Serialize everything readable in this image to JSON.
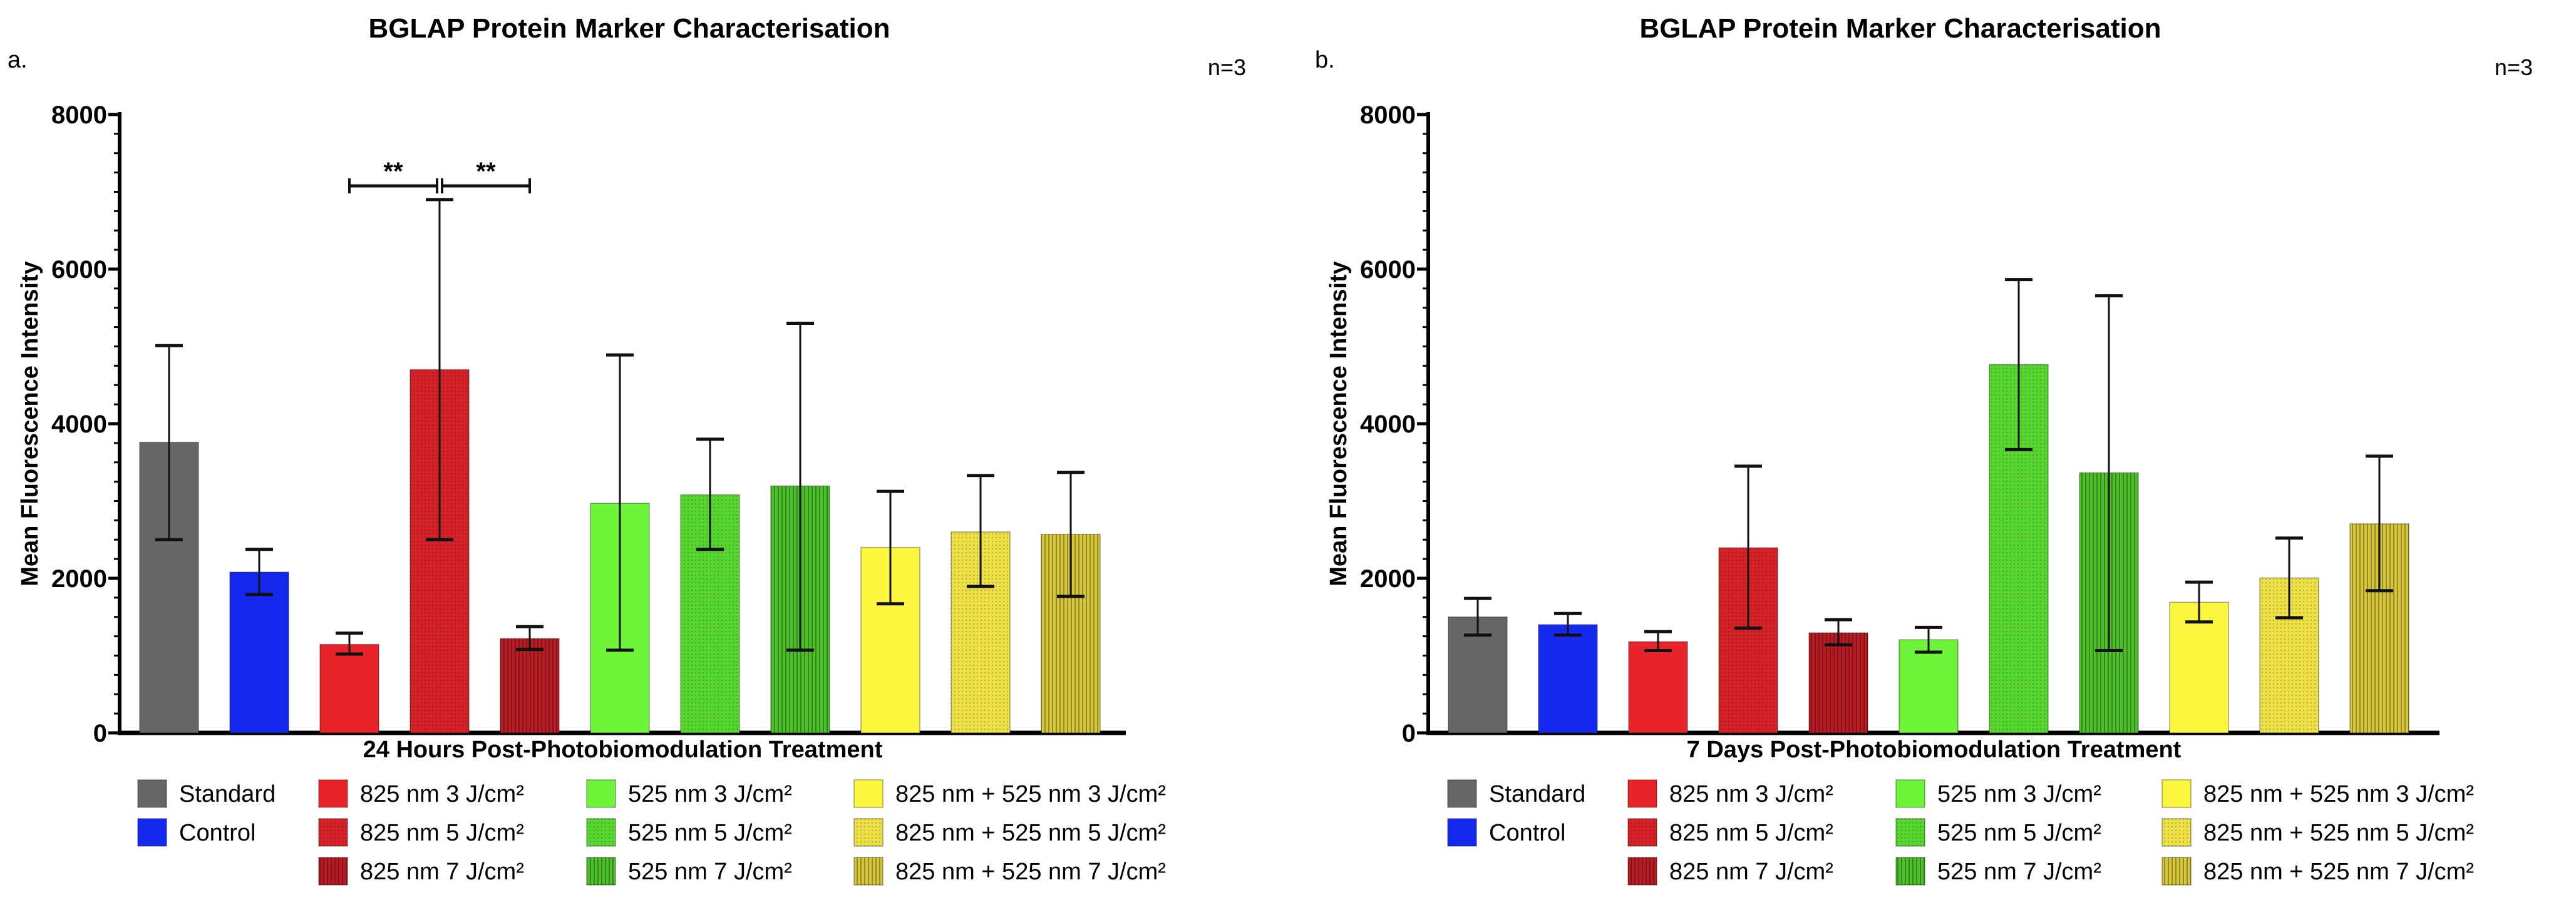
{
  "chart_data": [
    {
      "type": "bar",
      "panel_label": "a.",
      "title": "BGLAP Protein Marker Characterisation",
      "annotation": "n=3",
      "xlabel": "24 Hours Post-Photobiomodulation Treatment",
      "ylabel": "Mean Fluorescence Intensity",
      "ylim": [
        0,
        8000
      ],
      "yticks": [
        "0",
        "2000",
        "4000",
        "6000",
        "8000"
      ],
      "categories": [
        "Standard",
        "Control",
        "825 nm 3 J/cm²",
        "825 nm 5 J/cm²",
        "825 nm 7 J/cm²",
        "525 nm 3 J/cm²",
        "525 nm 5 J/cm²",
        "525 nm 7 J/cm²",
        "825 nm + 525 nm 3 J/cm²",
        "825 nm + 525 nm 5 J/cm²",
        "825 nm + 525 nm 7 J/cm²"
      ],
      "values": [
        3760,
        2080,
        1145,
        4700,
        1220,
        2970,
        3080,
        3195,
        2400,
        2600,
        2570
      ],
      "error_upper": [
        5010,
        2375,
        1290,
        6900,
        1375,
        4890,
        3800,
        5300,
        3125,
        3330,
        3370
      ],
      "error_lower": [
        2500,
        1790,
        1020,
        2500,
        1080,
        1070,
        2375,
        1070,
        1670,
        1895,
        1765
      ],
      "significance": [
        {
          "from": 2,
          "to": 3,
          "label": "**"
        },
        {
          "from": 3,
          "to": 4,
          "label": "**"
        }
      ]
    },
    {
      "type": "bar",
      "panel_label": "b.",
      "title": "BGLAP Protein Marker Characterisation",
      "annotation": "n=3",
      "xlabel": "7 Days Post-Photobiomodulation Treatment",
      "ylabel": "Mean Fluorescence Intensity",
      "ylim": [
        0,
        8000
      ],
      "yticks": [
        "0",
        "2000",
        "4000",
        "6000",
        "8000"
      ],
      "categories": [
        "Standard",
        "Control",
        "825 nm 3 J/cm²",
        "825 nm 5 J/cm²",
        "825 nm 7 J/cm²",
        "525 nm 3 J/cm²",
        "525 nm 5 J/cm²",
        "525 nm 7 J/cm²",
        "825 nm + 525 nm 3 J/cm²",
        "825 nm + 525 nm 5 J/cm²",
        "825 nm + 525 nm 7 J/cm²"
      ],
      "values": [
        1500,
        1400,
        1180,
        2395,
        1295,
        1205,
        4765,
        3365,
        1690,
        2005,
        2705
      ],
      "error_upper": [
        1740,
        1545,
        1310,
        3450,
        1465,
        1365,
        5865,
        5655,
        1950,
        2520,
        3580
      ],
      "error_lower": [
        1265,
        1265,
        1065,
        1355,
        1140,
        1045,
        3665,
        1065,
        1435,
        1490,
        1840
      ],
      "significance": []
    }
  ],
  "series_style": [
    {
      "color": "#666666",
      "pattern": "solid"
    },
    {
      "color": "#1428ee",
      "pattern": "solid"
    },
    {
      "color": "#e8242a",
      "pattern": "solid"
    },
    {
      "color": "#d42228",
      "pattern": "dots"
    },
    {
      "color": "#b91d23",
      "pattern": "vlines"
    },
    {
      "color": "#6ef53a",
      "pattern": "solid"
    },
    {
      "color": "#58d630",
      "pattern": "dots"
    },
    {
      "color": "#4cbf2a",
      "pattern": "vlines"
    },
    {
      "color": "#fdf63e",
      "pattern": "solid"
    },
    {
      "color": "#ece046",
      "pattern": "dots"
    },
    {
      "color": "#d5c63a",
      "pattern": "vlines"
    }
  ]
}
